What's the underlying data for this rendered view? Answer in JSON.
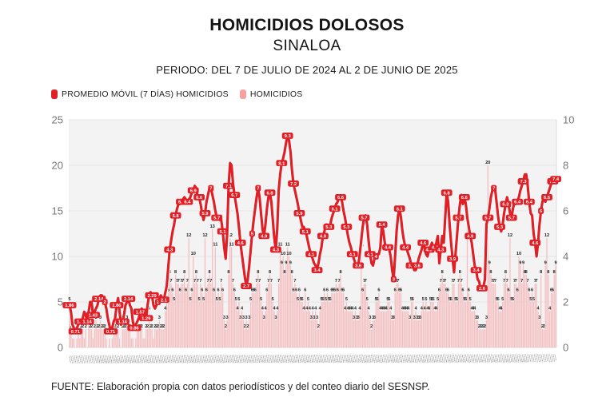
{
  "header": {
    "title": "HOMICIDIOS DOLOSOS",
    "subtitle": "SINALOA",
    "period": "PERIODO: DEL 7 DE JULIO DE 2024 AL 2 DE JUNIO DE 2025"
  },
  "legend": {
    "items": [
      {
        "label": "PROMEDIO MÓVIL (7 DÍAS) HOMICIDIOS",
        "color": "#e11f26"
      },
      {
        "label": "HOMICIDIOS",
        "color": "#f5a0a3"
      }
    ]
  },
  "footer": {
    "source": "FUENTE: Elaboración propia con datos periodísticos y del conteo diario del SESNSP."
  },
  "chart_data": {
    "type": "bar",
    "title": "HOMICIDIOS DOLOSOS",
    "subtitle": "SINALOA",
    "period": "PERIODO: DEL 7 DE JULIO DE 2024 AL 2 DE JUNIO DE 2025",
    "x": {
      "start": "7 DE JULIO DE 2024",
      "end": "2 DE JUNIO DE 2025",
      "n_days": 331
    },
    "left_axis": {
      "min": 0,
      "max": 25,
      "ticks": [
        0,
        5,
        10,
        15,
        20,
        25
      ]
    },
    "right_axis": {
      "min": 0,
      "max": 10,
      "ticks": [
        0,
        2,
        4,
        6,
        8,
        10
      ]
    },
    "grid": true,
    "legend_position": "top-left",
    "colors": {
      "plot_bg": "#f3f3f3",
      "grid": "#e5e5e5",
      "axis_text": "#767676",
      "bar_label": "#1c1c1c"
    },
    "series": [
      {
        "name": "HOMICIDIOS",
        "type": "bar",
        "axis": "left",
        "color": "#f5bec0",
        "values": [
          5,
          2,
          1,
          1,
          0,
          1,
          2,
          1,
          2,
          2,
          1,
          2,
          0,
          3,
          2,
          2,
          1,
          2,
          3,
          2,
          2,
          3,
          2,
          2,
          2,
          1,
          0,
          1,
          0,
          1,
          2,
          2,
          3,
          2,
          1,
          0,
          2,
          2,
          2,
          3,
          2,
          2,
          1,
          1,
          0,
          1,
          2,
          2,
          2,
          2,
          1,
          1,
          2,
          2,
          4,
          2,
          2,
          1,
          2,
          2,
          2,
          3,
          2,
          2,
          2,
          4,
          5,
          6,
          8,
          7,
          6,
          5,
          8,
          7,
          7,
          6,
          7,
          7,
          8,
          6,
          7,
          12,
          5,
          6,
          10,
          7,
          8,
          7,
          5,
          7,
          6,
          5,
          12,
          6,
          7,
          8,
          7,
          13,
          6,
          11,
          5,
          6,
          5,
          7,
          6,
          3,
          2,
          3,
          8,
          12,
          11,
          7,
          6,
          5,
          4,
          5,
          3,
          4,
          3,
          2,
          3,
          2,
          3,
          5,
          6,
          6,
          6,
          7,
          8,
          7,
          5,
          4,
          3,
          4,
          6,
          7,
          8,
          7,
          5,
          4,
          3,
          4,
          7,
          11,
          9,
          10,
          8,
          9,
          11,
          10,
          9,
          8,
          6,
          7,
          6,
          5,
          6,
          5,
          5,
          4,
          6,
          4,
          5,
          4,
          3,
          4,
          3,
          4,
          3,
          2,
          4,
          5,
          5,
          6,
          5,
          6,
          5,
          5,
          6,
          6,
          6,
          7,
          6,
          7,
          8,
          6,
          6,
          4,
          5,
          4,
          4,
          4,
          4,
          3,
          4,
          3,
          3,
          4,
          11,
          6,
          7,
          7,
          5,
          4,
          3,
          2,
          3,
          3,
          5,
          5,
          6,
          4,
          4,
          4,
          4,
          4,
          5,
          5,
          4,
          3,
          3,
          6,
          7,
          7,
          6,
          6,
          4,
          4,
          4,
          4,
          4,
          3,
          5,
          5,
          3,
          4,
          3,
          3,
          3,
          4,
          5,
          4,
          5,
          4,
          4,
          5,
          5,
          5,
          4,
          4,
          5,
          6,
          7,
          8,
          7,
          7,
          6,
          6,
          5,
          5,
          7,
          7,
          5,
          5,
          7,
          8,
          7,
          6,
          5,
          5,
          16,
          6,
          5,
          4,
          4,
          4,
          3,
          3,
          2,
          2,
          2,
          2,
          2,
          3,
          20,
          9,
          8,
          7,
          7,
          7,
          5,
          5,
          4,
          4,
          5,
          7,
          8,
          7,
          6,
          12,
          5,
          5,
          7,
          7,
          6,
          10,
          9,
          7,
          9,
          8,
          8,
          7,
          6,
          5,
          6,
          5,
          7,
          7,
          4,
          3,
          8,
          2,
          2,
          9,
          12,
          8,
          4,
          6,
          6,
          8,
          9,
          9
        ]
      },
      {
        "name": "PROMEDIO MÓVIL (7 DÍAS) HOMICIDIOS",
        "type": "line",
        "axis": "right",
        "color": "#e11f26",
        "values": [
          1.86,
          1.57,
          1.0,
          0.86,
          0.71,
          0.86,
          1.0,
          1.14,
          1.14,
          1.29,
          1.57,
          1.43,
          1.14,
          1.57,
          2.0,
          2.0,
          1.43,
          1.57,
          1.71,
          1.86,
          2.14,
          2.29,
          2.29,
          2.14,
          2.0,
          1.71,
          1.29,
          1.0,
          0.71,
          0.86,
          1.14,
          1.29,
          1.86,
          2.17,
          1.57,
          1.0,
          1.14,
          1.43,
          1.86,
          2.0,
          2.14,
          1.86,
          1.71,
          1.14,
          0.86,
          1.0,
          1.14,
          1.29,
          1.57,
          1.71,
          1.57,
          1.43,
          1.29,
          1.86,
          2.29,
          2.43,
          2.29,
          1.86,
          1.71,
          1.86,
          2.0,
          2.14,
          2.29,
          2.14,
          2.1,
          2.4,
          2.7,
          3.5,
          4.3,
          4.7,
          5.1,
          5.4,
          5.8,
          6.1,
          6.3,
          6.3,
          6.4,
          6.5,
          6.6,
          6.5,
          6.4,
          6.5,
          6.6,
          6.8,
          6.9,
          7.1,
          7.0,
          6.6,
          6.6,
          6.3,
          5.9,
          5.6,
          5.9,
          6.4,
          6.7,
          7.0,
          7.0,
          6.7,
          6.4,
          6.0,
          5.7,
          5.7,
          5.6,
          5.6,
          5.1,
          4.4,
          3.9,
          5.0,
          7.1,
          8.1,
          8.0,
          7.2,
          6.7,
          6.3,
          5.9,
          5.3,
          4.6,
          4.1,
          3.6,
          3.1,
          2.7,
          3.0,
          3.6,
          4.3,
          5.0,
          5.6,
          6.1,
          6.6,
          7.0,
          6.6,
          5.9,
          5.2,
          4.9,
          5.4,
          6.1,
          6.6,
          6.8,
          6.4,
          5.6,
          4.8,
          4.3,
          5.2,
          6.9,
          7.6,
          8.1,
          8.3,
          8.6,
          9.0,
          9.3,
          9.1,
          8.6,
          7.8,
          7.2,
          6.9,
          6.6,
          6.3,
          5.9,
          5.6,
          5.3,
          5.3,
          5.1,
          4.9,
          4.6,
          4.3,
          4.1,
          3.9,
          3.7,
          3.6,
          3.4,
          3.7,
          4.1,
          4.4,
          4.9,
          5.1,
          5.4,
          5.4,
          5.3,
          5.4,
          5.7,
          5.9,
          6.1,
          6.3,
          6.4,
          6.6,
          6.6,
          6.4,
          6.0,
          5.7,
          5.3,
          4.9,
          4.6,
          4.4,
          4.1,
          3.9,
          3.7,
          3.6,
          3.6,
          4.1,
          4.7,
          5.3,
          5.7,
          5.8,
          5.4,
          4.7,
          4.1,
          3.7,
          3.6,
          3.9,
          4.0,
          4.1,
          4.1,
          4.4,
          5.4,
          5.1,
          4.6,
          4.3,
          4.4,
          4.3,
          4.0,
          3.4,
          3.0,
          4.0,
          5.1,
          5.8,
          6.1,
          5.7,
          5.1,
          4.7,
          4.4,
          4.3,
          4.1,
          3.9,
          3.6,
          3.6,
          3.4,
          3.4,
          3.6,
          3.9,
          4.1,
          4.3,
          4.6,
          4.4,
          4.1,
          4.0,
          4.3,
          4.4,
          4.6,
          4.4,
          4.4,
          4.6,
          4.9,
          3.7,
          4.3,
          4.9,
          4.6,
          5.7,
          6.8,
          6.4,
          5.4,
          4.6,
          3.9,
          3.3,
          4.1,
          4.9,
          5.7,
          6.3,
          6.7,
          6.3,
          6.6,
          6.3,
          5.7,
          5.3,
          4.9,
          4.6,
          4.1,
          3.6,
          3.4,
          3.0,
          2.9,
          2.6,
          2.6,
          2.7,
          3.0,
          5.4,
          5.7,
          6.1,
          6.6,
          6.9,
          7.0,
          6.9,
          6.3,
          5.7,
          5.3,
          5.1,
          5.4,
          5.9,
          6.3,
          6.6,
          6.3,
          5.9,
          5.7,
          6.1,
          6.4,
          6.3,
          6.4,
          6.6,
          6.9,
          7.1,
          7.3,
          7.6,
          7.6,
          7.1,
          6.4,
          5.9,
          5.8,
          5.0,
          4.6,
          4.0,
          4.6,
          5.4,
          6.0,
          6.4,
          6.6,
          6.4,
          6.6,
          6.8,
          7.0,
          7.2,
          7.3,
          7.4,
          7.4
        ]
      }
    ]
  }
}
